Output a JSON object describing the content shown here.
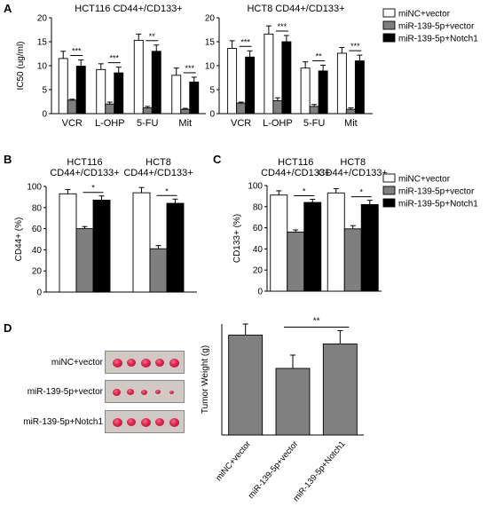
{
  "panel_labels": {
    "A": "A",
    "B": "B",
    "C": "C",
    "D": "D"
  },
  "colors": {
    "white_bar": "#ffffff",
    "gray_bar": "#7f7f7f",
    "black_bar": "#000000",
    "axis": "#000000",
    "d_bar": "#808080"
  },
  "legend": [
    "miNC+vector",
    "miR-139-5p+vector",
    "miR-139-5p+Notch1"
  ],
  "chart_data": [
    {
      "id": "A1",
      "type": "bar",
      "title": "HCT116 CD44+/CD133+",
      "ylabel": "IC50 (ug/ml)",
      "ylim": [
        0,
        20
      ],
      "yticks": [
        0,
        5,
        10,
        15,
        20
      ],
      "categories": [
        "VCR",
        "L-OHP",
        "5-FU",
        "Mit"
      ],
      "series": [
        {
          "name": "miNC+vector",
          "values": [
            11.5,
            9.2,
            15.3,
            8.0
          ],
          "errors": [
            1.5,
            1.2,
            1.3,
            1.5
          ]
        },
        {
          "name": "miR-139-5p+vector",
          "values": [
            2.8,
            2.0,
            1.2,
            0.9
          ],
          "errors": [
            0.2,
            0.4,
            0.3,
            0.2
          ]
        },
        {
          "name": "miR-139-5p+Notch1",
          "values": [
            9.9,
            8.5,
            13.0,
            6.6
          ],
          "errors": [
            1.3,
            1.2,
            1.3,
            1.0
          ]
        }
      ],
      "significance": [
        "***",
        "***",
        "**",
        "***"
      ]
    },
    {
      "id": "A2",
      "type": "bar",
      "title": "HCT8 CD44+/CD133+",
      "ylabel": "",
      "ylim": [
        0,
        20
      ],
      "yticks": [
        0,
        5,
        10,
        15,
        20
      ],
      "categories": [
        "VCR",
        "L-OHP",
        "5-FU",
        "Mit"
      ],
      "series": [
        {
          "name": "miNC+vector",
          "values": [
            13.6,
            16.6,
            9.5,
            12.6
          ],
          "errors": [
            1.6,
            1.7,
            1.3,
            1.2
          ]
        },
        {
          "name": "miR-139-5p+vector",
          "values": [
            2.2,
            2.7,
            1.5,
            0.9
          ],
          "errors": [
            0.2,
            0.6,
            0.4,
            0.3
          ]
        },
        {
          "name": "miR-139-5p+Notch1",
          "values": [
            11.8,
            15.0,
            8.9,
            11.0
          ],
          "errors": [
            1.3,
            1.3,
            1.2,
            1.2
          ]
        }
      ],
      "significance": [
        "***",
        "***",
        "**",
        "***"
      ]
    },
    {
      "id": "B",
      "type": "bar",
      "ylabel": "CD44+ (%)",
      "ylim": [
        0,
        100
      ],
      "yticks": [
        0,
        20,
        40,
        60,
        80,
        100
      ],
      "categories": [
        "HCT116\nCD44+/CD133+",
        "HCT8\nCD44+/CD133+"
      ],
      "series": [
        {
          "name": "miNC+vector",
          "values": [
            93,
            94
          ],
          "errors": [
            4,
            5
          ]
        },
        {
          "name": "miR-139-5p+vector",
          "values": [
            60,
            41
          ],
          "errors": [
            2,
            3
          ]
        },
        {
          "name": "miR-139-5p+Notch1",
          "values": [
            87,
            84
          ],
          "errors": [
            4,
            4
          ]
        }
      ],
      "significance": [
        "*",
        "*"
      ]
    },
    {
      "id": "C",
      "type": "bar",
      "ylabel": "CD133+ (%)",
      "ylim": [
        0,
        100
      ],
      "yticks": [
        0,
        20,
        40,
        60,
        80,
        100
      ],
      "categories": [
        "HCT116\nCD44+/CD133+",
        "HCT8\nCD44+/CD133+"
      ],
      "series": [
        {
          "name": "miNC+vector",
          "values": [
            91,
            93
          ],
          "errors": [
            4,
            4
          ]
        },
        {
          "name": "miR-139-5p+vector",
          "values": [
            56,
            59
          ],
          "errors": [
            2,
            3
          ]
        },
        {
          "name": "miR-139-5p+Notch1",
          "values": [
            84,
            82
          ],
          "errors": [
            3,
            4
          ]
        }
      ],
      "significance": [
        "*",
        "*"
      ]
    },
    {
      "id": "D",
      "type": "bar",
      "ylabel": "Tumor Weight (g)",
      "ylim": [
        0,
        1.0
      ],
      "categories": [
        "miNC+vector",
        "miR-139-5p+vector",
        "miR-139-5p+Notch1"
      ],
      "values": [
        0.9,
        0.6,
        0.82
      ],
      "errors": [
        0.1,
        0.12,
        0.12
      ],
      "significance": "**"
    }
  ],
  "tumor_rows": [
    {
      "label": "miNC+vector",
      "count": 5
    },
    {
      "label": "miR-139-5p+vector",
      "count": 5
    },
    {
      "label": "miR-139-5p+Notch1",
      "count": 5
    }
  ]
}
